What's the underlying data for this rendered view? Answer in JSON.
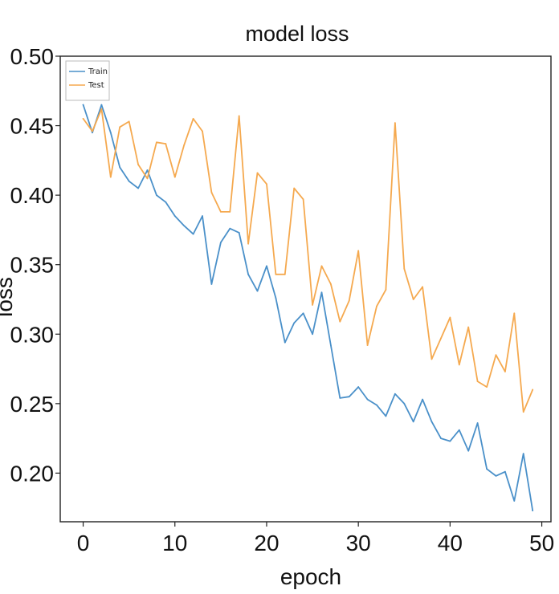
{
  "chart_data": {
    "type": "line",
    "title": "model loss",
    "xlabel": "epoch",
    "ylabel": "loss",
    "xlim": [
      -2.5,
      51
    ],
    "ylim": [
      0.165,
      0.5
    ],
    "xticks": [
      0,
      10,
      20,
      30,
      40,
      50
    ],
    "yticks": [
      0.2,
      0.25,
      0.3,
      0.35,
      0.4,
      0.45,
      0.5
    ],
    "ytick_labels": [
      "0.20",
      "0.25",
      "0.30",
      "0.35",
      "0.40",
      "0.45",
      "0.50"
    ],
    "grid": false,
    "legend": "upper-left",
    "x": [
      0,
      1,
      2,
      3,
      4,
      5,
      6,
      7,
      8,
      9,
      10,
      11,
      12,
      13,
      14,
      15,
      16,
      17,
      18,
      19,
      20,
      21,
      22,
      23,
      24,
      25,
      26,
      27,
      28,
      29,
      30,
      31,
      32,
      33,
      34,
      35,
      36,
      37,
      38,
      39,
      40,
      41,
      42,
      43,
      44,
      45,
      46,
      47,
      48,
      49
    ],
    "series": [
      {
        "name": "Train",
        "color": "#4a90c9",
        "values": [
          0.465,
          0.445,
          0.465,
          0.445,
          0.42,
          0.41,
          0.405,
          0.418,
          0.4,
          0.395,
          0.385,
          0.378,
          0.372,
          0.385,
          0.336,
          0.366,
          0.376,
          0.373,
          0.343,
          0.331,
          0.349,
          0.326,
          0.294,
          0.308,
          0.315,
          0.3,
          0.33,
          0.292,
          0.254,
          0.255,
          0.262,
          0.253,
          0.249,
          0.241,
          0.257,
          0.25,
          0.237,
          0.253,
          0.237,
          0.225,
          0.223,
          0.231,
          0.216,
          0.236,
          0.203,
          0.198,
          0.201,
          0.18,
          0.214,
          0.173
        ]
      },
      {
        "name": "Test",
        "color": "#f5a94f",
        "values": [
          0.455,
          0.446,
          0.462,
          0.413,
          0.449,
          0.453,
          0.422,
          0.412,
          0.438,
          0.437,
          0.413,
          0.436,
          0.455,
          0.446,
          0.402,
          0.388,
          0.388,
          0.457,
          0.365,
          0.416,
          0.408,
          0.343,
          0.343,
          0.405,
          0.397,
          0.321,
          0.349,
          0.336,
          0.309,
          0.324,
          0.36,
          0.292,
          0.32,
          0.332,
          0.452,
          0.347,
          0.325,
          0.334,
          0.282,
          0.297,
          0.312,
          0.278,
          0.305,
          0.266,
          0.262,
          0.285,
          0.273,
          0.315,
          0.244,
          0.26
        ]
      }
    ]
  }
}
